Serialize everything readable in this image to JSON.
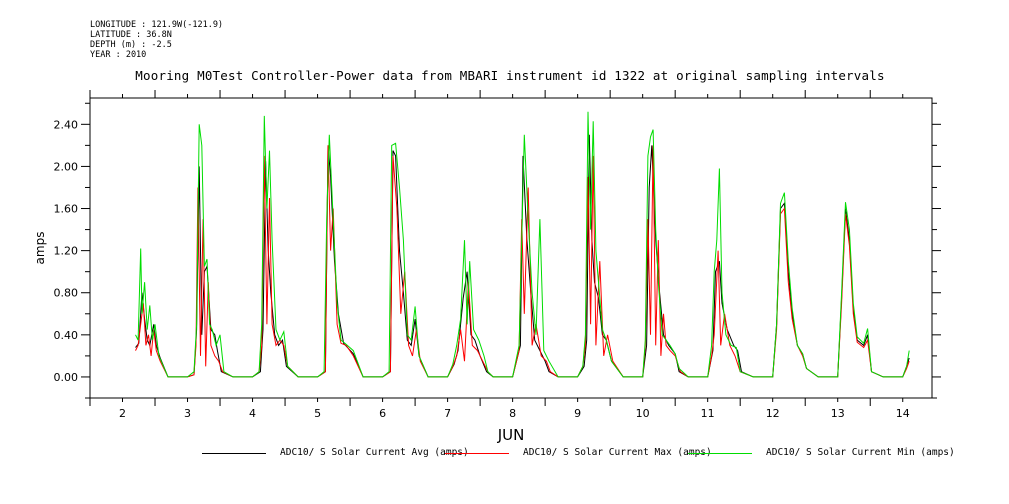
{
  "meta": {
    "longitude": "LONGITUDE : 121.9W(-121.9)",
    "latitude": "LATITUDE : 36.8N",
    "depth": "DEPTH (m) : -2.5",
    "year": "YEAR : 2010"
  },
  "chart_data": {
    "type": "line",
    "title": "Mooring M0Test Controller-Power data from MBARI instrument id 1322 at original sampling intervals",
    "xlabel": "JUN",
    "ylabel": "amps",
    "xlim": [
      1.5,
      14.45
    ],
    "ylim": [
      -0.2,
      2.65
    ],
    "x_ticks": [
      2,
      3,
      4,
      5,
      6,
      7,
      8,
      9,
      10,
      11,
      12,
      13,
      14
    ],
    "y_ticks": [
      0.0,
      0.4,
      0.8,
      1.2,
      1.6,
      2.0,
      2.4
    ],
    "y_tick_labels": [
      "0.00",
      "0.40",
      "0.80",
      "1.20",
      "1.60",
      "2.00",
      "2.40"
    ],
    "grid": false,
    "legend_position": "bottom",
    "series": [
      {
        "name": "ADC10/ S Solar Current Avg (amps)",
        "color": "#000000",
        "x": [
          2.2,
          2.25,
          2.3,
          2.34,
          2.38,
          2.42,
          2.48,
          2.52,
          2.58,
          2.7,
          3.0,
          3.1,
          3.14,
          3.18,
          3.22,
          3.26,
          3.3,
          3.36,
          3.42,
          3.46,
          3.52,
          3.7,
          4.0,
          4.12,
          4.16,
          4.2,
          4.24,
          4.28,
          4.34,
          4.4,
          4.46,
          4.52,
          4.7,
          5.0,
          5.12,
          5.16,
          5.2,
          5.26,
          5.32,
          5.4,
          5.55,
          5.7,
          6.0,
          6.12,
          6.16,
          6.2,
          6.26,
          6.32,
          6.38,
          6.44,
          6.5,
          6.56,
          6.7,
          7.0,
          7.1,
          7.16,
          7.24,
          7.3,
          7.36,
          7.42,
          7.5,
          7.6,
          7.7,
          8.0,
          8.12,
          8.16,
          8.22,
          8.28,
          8.34,
          8.42,
          8.5,
          8.56,
          8.7,
          9.0,
          9.1,
          9.14,
          9.18,
          9.22,
          9.26,
          9.32,
          9.38,
          9.44,
          9.52,
          9.7,
          10.0,
          10.06,
          10.1,
          10.14,
          10.2,
          10.26,
          10.32,
          10.4,
          10.5,
          10.56,
          10.7,
          11.0,
          11.08,
          11.12,
          11.18,
          11.22,
          11.3,
          11.4,
          11.46,
          11.52,
          11.7,
          12.0,
          12.06,
          12.12,
          12.18,
          12.24,
          12.3,
          12.38,
          12.46,
          12.52,
          12.7,
          13.0,
          13.06,
          13.12,
          13.18,
          13.24,
          13.3,
          13.4,
          13.46,
          13.52,
          13.7,
          14.0,
          14.06,
          14.1
        ],
        "values": [
          0.28,
          0.32,
          0.8,
          0.55,
          0.35,
          0.3,
          0.5,
          0.3,
          0.18,
          0.0,
          0.0,
          0.02,
          0.45,
          2.0,
          0.4,
          1.0,
          1.05,
          0.45,
          0.4,
          0.25,
          0.05,
          0.0,
          0.0,
          0.05,
          0.45,
          2.05,
          1.2,
          0.8,
          0.4,
          0.3,
          0.35,
          0.1,
          0.0,
          0.0,
          0.05,
          2.2,
          1.9,
          1.1,
          0.6,
          0.32,
          0.22,
          0.0,
          0.0,
          0.05,
          2.15,
          2.1,
          1.2,
          0.8,
          0.35,
          0.3,
          0.55,
          0.2,
          0.0,
          0.0,
          0.12,
          0.25,
          0.75,
          1.0,
          0.4,
          0.35,
          0.2,
          0.05,
          0.0,
          0.0,
          0.3,
          2.1,
          1.3,
          0.8,
          0.35,
          0.25,
          0.15,
          0.05,
          0.0,
          0.0,
          0.1,
          0.35,
          2.3,
          1.3,
          0.9,
          0.75,
          0.4,
          0.35,
          0.15,
          0.0,
          0.0,
          0.3,
          1.8,
          2.2,
          1.3,
          0.8,
          0.4,
          0.3,
          0.22,
          0.05,
          0.0,
          0.0,
          0.25,
          1.0,
          1.1,
          0.7,
          0.45,
          0.3,
          0.25,
          0.05,
          0.0,
          0.0,
          0.5,
          1.6,
          1.65,
          1.0,
          0.6,
          0.3,
          0.22,
          0.08,
          0.0,
          0.0,
          0.75,
          1.6,
          1.3,
          0.65,
          0.35,
          0.3,
          0.4,
          0.05,
          0.0,
          0.0,
          0.1,
          0.18
        ]
      },
      {
        "name": "ADC10/ S Solar Current Max (amps)",
        "color": "#ff0000",
        "x": [
          2.2,
          2.24,
          2.28,
          2.32,
          2.36,
          2.4,
          2.44,
          2.48,
          2.52,
          2.58,
          2.7,
          3.0,
          3.1,
          3.13,
          3.16,
          3.2,
          3.24,
          3.28,
          3.32,
          3.36,
          3.42,
          3.48,
          3.54,
          3.7,
          4.0,
          4.1,
          4.14,
          4.18,
          4.22,
          4.26,
          4.3,
          4.36,
          4.42,
          4.48,
          4.54,
          4.7,
          5.0,
          5.12,
          5.16,
          5.2,
          5.24,
          5.3,
          5.36,
          5.44,
          5.55,
          5.7,
          6.0,
          6.12,
          6.16,
          6.22,
          6.28,
          6.34,
          6.4,
          6.46,
          6.52,
          6.58,
          6.7,
          7.0,
          7.08,
          7.14,
          7.2,
          7.26,
          7.32,
          7.38,
          7.46,
          7.54,
          7.62,
          7.7,
          8.0,
          8.1,
          8.14,
          8.18,
          8.24,
          8.3,
          8.36,
          8.44,
          8.52,
          8.58,
          8.7,
          9.0,
          9.08,
          9.12,
          9.16,
          9.2,
          9.24,
          9.28,
          9.34,
          9.4,
          9.46,
          9.54,
          9.7,
          10.0,
          10.04,
          10.08,
          10.12,
          10.16,
          10.2,
          10.24,
          10.28,
          10.32,
          10.36,
          10.42,
          10.5,
          10.58,
          10.7,
          11.0,
          11.06,
          11.1,
          11.16,
          11.2,
          11.26,
          11.34,
          11.42,
          11.5,
          11.7,
          12.0,
          12.06,
          12.12,
          12.18,
          12.24,
          12.3,
          12.38,
          12.46,
          12.52,
          12.7,
          13.0,
          13.06,
          13.12,
          13.18,
          13.24,
          13.3,
          13.4,
          13.46,
          13.52,
          13.7,
          14.0,
          14.06,
          14.1
        ],
        "values": [
          0.25,
          0.3,
          0.5,
          0.7,
          0.3,
          0.4,
          0.2,
          0.45,
          0.25,
          0.15,
          0.0,
          0.0,
          0.02,
          0.3,
          1.8,
          0.2,
          1.5,
          0.1,
          0.9,
          0.3,
          0.2,
          0.15,
          0.05,
          0.0,
          0.0,
          0.05,
          0.3,
          2.1,
          0.5,
          1.7,
          0.5,
          0.3,
          0.35,
          0.3,
          0.1,
          0.0,
          0.0,
          0.05,
          2.2,
          1.2,
          1.6,
          0.5,
          0.32,
          0.3,
          0.2,
          0.0,
          0.0,
          0.05,
          2.1,
          1.6,
          0.6,
          1.0,
          0.3,
          0.2,
          0.45,
          0.15,
          0.0,
          0.0,
          0.1,
          0.2,
          0.45,
          0.15,
          0.9,
          0.3,
          0.25,
          0.15,
          0.05,
          0.0,
          0.0,
          0.25,
          1.5,
          0.6,
          1.8,
          0.3,
          0.5,
          0.2,
          0.15,
          0.05,
          0.0,
          0.0,
          0.1,
          0.3,
          1.9,
          0.5,
          2.1,
          0.3,
          1.1,
          0.2,
          0.4,
          0.15,
          0.0,
          0.0,
          0.3,
          1.5,
          0.4,
          2.2,
          0.3,
          1.3,
          0.2,
          0.6,
          0.3,
          0.25,
          0.2,
          0.05,
          0.0,
          0.0,
          0.2,
          0.4,
          1.2,
          0.3,
          0.6,
          0.3,
          0.2,
          0.05,
          0.0,
          0.0,
          0.45,
          1.55,
          1.6,
          0.9,
          0.55,
          0.3,
          0.2,
          0.08,
          0.0,
          0.0,
          0.7,
          1.55,
          1.25,
          0.6,
          0.33,
          0.28,
          0.35,
          0.05,
          0.0,
          0.0,
          0.08,
          0.15
        ]
      },
      {
        "name": "ADC10/ S Solar Current Min (amps)",
        "color": "#00dd00",
        "x": [
          2.2,
          2.24,
          2.28,
          2.3,
          2.34,
          2.38,
          2.42,
          2.46,
          2.5,
          2.56,
          2.7,
          3.0,
          3.1,
          3.14,
          3.18,
          3.22,
          3.26,
          3.3,
          3.34,
          3.38,
          3.44,
          3.5,
          3.56,
          3.7,
          4.0,
          4.1,
          4.14,
          4.18,
          4.22,
          4.26,
          4.3,
          4.36,
          4.42,
          4.48,
          4.54,
          4.7,
          5.0,
          5.1,
          5.14,
          5.18,
          5.24,
          5.3,
          5.36,
          5.42,
          5.55,
          5.7,
          6.0,
          6.1,
          6.14,
          6.2,
          6.26,
          6.32,
          6.38,
          6.44,
          6.5,
          6.56,
          6.7,
          7.0,
          7.08,
          7.14,
          7.2,
          7.26,
          7.3,
          7.34,
          7.4,
          7.48,
          7.56,
          7.62,
          7.7,
          8.0,
          8.1,
          8.14,
          8.18,
          8.24,
          8.3,
          8.36,
          8.42,
          8.48,
          8.56,
          8.7,
          9.0,
          9.08,
          9.12,
          9.16,
          9.2,
          9.24,
          9.28,
          9.32,
          9.38,
          9.44,
          9.52,
          9.7,
          10.0,
          10.04,
          10.08,
          10.12,
          10.16,
          10.2,
          10.24,
          10.3,
          10.36,
          10.42,
          10.5,
          10.56,
          10.7,
          11.0,
          11.06,
          11.1,
          11.14,
          11.18,
          11.22,
          11.28,
          11.36,
          11.44,
          11.5,
          11.7,
          12.0,
          12.06,
          12.12,
          12.18,
          12.24,
          12.3,
          12.38,
          12.46,
          12.52,
          12.7,
          13.0,
          13.06,
          13.12,
          13.18,
          13.24,
          13.3,
          13.4,
          13.46,
          13.52,
          13.7,
          14.0,
          14.06,
          14.1
        ],
        "values": [
          0.4,
          0.35,
          1.22,
          0.6,
          0.9,
          0.45,
          0.68,
          0.35,
          0.5,
          0.2,
          0.0,
          0.0,
          0.05,
          0.5,
          2.4,
          2.2,
          1.05,
          1.12,
          0.5,
          0.45,
          0.3,
          0.4,
          0.05,
          0.0,
          0.0,
          0.05,
          0.5,
          2.48,
          1.6,
          2.15,
          1.3,
          0.45,
          0.35,
          0.43,
          0.1,
          0.0,
          0.0,
          0.05,
          1.5,
          2.3,
          1.5,
          0.7,
          0.35,
          0.32,
          0.25,
          0.0,
          0.0,
          0.05,
          2.2,
          2.22,
          1.8,
          1.3,
          0.4,
          0.35,
          0.67,
          0.2,
          0.0,
          0.0,
          0.12,
          0.3,
          0.55,
          1.3,
          0.5,
          1.1,
          0.45,
          0.35,
          0.2,
          0.05,
          0.0,
          0.0,
          0.3,
          1.3,
          2.3,
          1.5,
          0.8,
          0.4,
          1.5,
          0.25,
          0.15,
          0.0,
          0.0,
          0.1,
          0.4,
          2.52,
          1.4,
          2.43,
          1.2,
          0.9,
          0.45,
          0.35,
          0.15,
          0.0,
          0.0,
          0.35,
          2.1,
          2.28,
          2.35,
          1.4,
          0.9,
          0.4,
          0.35,
          0.3,
          0.22,
          0.08,
          0.0,
          0.0,
          0.3,
          1.0,
          1.3,
          1.98,
          0.8,
          0.4,
          0.3,
          0.28,
          0.05,
          0.0,
          0.0,
          0.5,
          1.65,
          1.75,
          1.1,
          0.65,
          0.3,
          0.22,
          0.08,
          0.0,
          0.0,
          0.8,
          1.66,
          1.4,
          0.7,
          0.38,
          0.32,
          0.46,
          0.05,
          0.0,
          0.0,
          0.1,
          0.25
        ]
      }
    ]
  }
}
